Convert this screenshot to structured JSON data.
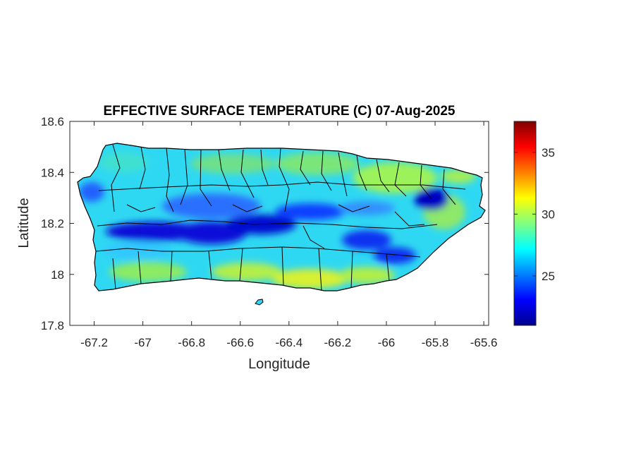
{
  "chart_data": {
    "type": "heatmap",
    "title": "EFFECTIVE SURFACE TEMPERATURE (C) 07-Aug-2025",
    "xlabel": "Longitude",
    "ylabel": "Latitude",
    "xlim": [
      -67.3,
      -65.58
    ],
    "ylim": [
      17.8,
      18.6
    ],
    "x_ticks": [
      -67.2,
      -67,
      -66.8,
      -66.6,
      -66.4,
      -66.2,
      -66,
      -65.8,
      -65.6
    ],
    "x_tick_labels": [
      "-67.2",
      "-67",
      "-66.8",
      "-66.6",
      "-66.4",
      "-66.2",
      "-66",
      "-65.8",
      "-65.6"
    ],
    "y_ticks": [
      17.8,
      18,
      18.2,
      18.4,
      18.6
    ],
    "y_tick_labels": [
      "17.8",
      "18",
      "18.2",
      "18.4",
      "18.6"
    ],
    "colorbar": {
      "colormap": "jet",
      "range": [
        21,
        37.5
      ],
      "ticks": [
        25,
        30,
        35
      ],
      "tick_labels": [
        "25",
        "30",
        "35"
      ]
    },
    "description_of_field": {
      "coolest_regions": [
        "central mountain range (Cordillera Central) near 18.15-18.25 N, -67.0 to -66.3 E",
        "El Yunque area near 18.3 N, -65.8 E",
        "Sierra de Cayey near 18.1 N, -66.05 E"
      ],
      "warmest_regions": [
        "south coast near -66.4 to -66.2",
        "northeast coastal plain near -66.1 to -65.9"
      ]
    },
    "grid": false,
    "overlay": "municipality boundaries (black lines)"
  }
}
